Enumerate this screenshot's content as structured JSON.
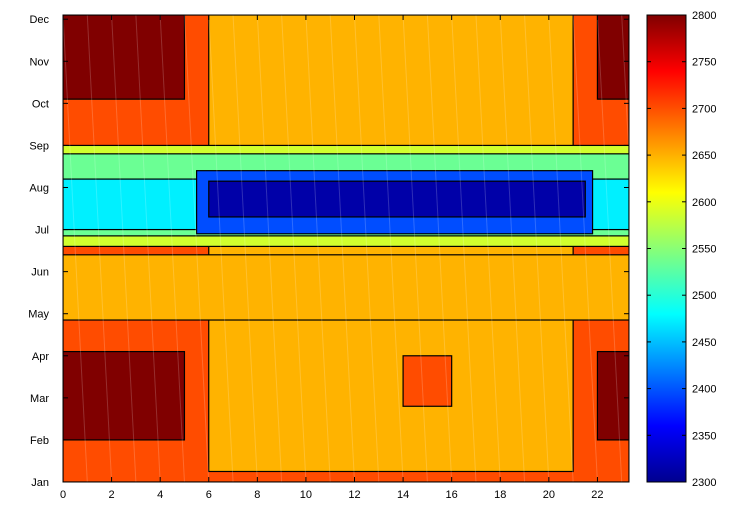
{
  "chart_data": {
    "type": "heatmap",
    "subtype": "filled-contour",
    "colormap": "jet",
    "title": "",
    "xlabel": "",
    "ylabel": "",
    "xlim": [
      0,
      23.3
    ],
    "ylim": [
      0,
      11.1
    ],
    "x_ticks": [
      0,
      2,
      4,
      6,
      8,
      10,
      12,
      14,
      16,
      18,
      20,
      22
    ],
    "y_ticks": [
      "Jan",
      "Feb",
      "Mar",
      "Apr",
      "May",
      "Jun",
      "Jul",
      "Aug",
      "Sep",
      "Oct",
      "Nov",
      "Dec"
    ],
    "colorbar": {
      "min": 2300,
      "max": 2800,
      "ticks": [
        2300,
        2350,
        2400,
        2450,
        2500,
        2550,
        2600,
        2650,
        2700,
        2750,
        2800
      ]
    },
    "contour_levels": [
      2575,
      2625,
      2675,
      2725,
      2775,
      2525,
      2475,
      2425,
      2375,
      2325
    ],
    "filled_regions": [
      {
        "value": 2700,
        "bounds": {
          "x": [
            0,
            23.3
          ],
          "y": [
            0,
            11.1
          ]
        }
      },
      {
        "value": 2650,
        "bounds": {
          "x": [
            6,
            21
          ],
          "y": [
            0.25,
            11.1
          ]
        }
      },
      {
        "value": 2650,
        "bounds": {
          "x": [
            0,
            23.3
          ],
          "y": [
            3.85,
            5.4
          ]
        }
      },
      {
        "value": 2800,
        "bounds": {
          "x": [
            0,
            5
          ],
          "y": [
            1,
            3.1
          ]
        }
      },
      {
        "value": 2800,
        "bounds": {
          "x": [
            0,
            5
          ],
          "y": [
            9.1,
            11.1
          ]
        }
      },
      {
        "value": 2800,
        "bounds": {
          "x": [
            22,
            23.3
          ],
          "y": [
            1,
            3.1
          ]
        }
      },
      {
        "value": 2800,
        "bounds": {
          "x": [
            22,
            23.3
          ],
          "y": [
            9.1,
            11.1
          ]
        }
      },
      {
        "value": 2700,
        "bounds": {
          "x": [
            14,
            16
          ],
          "y": [
            1.8,
            3
          ]
        }
      },
      {
        "value": 2590,
        "bounds": {
          "x": [
            0,
            23.3
          ],
          "y": [
            5.6,
            8
          ]
        }
      },
      {
        "value": 2540,
        "bounds": {
          "x": [
            0,
            23.3
          ],
          "y": [
            5.85,
            7.8
          ]
        }
      },
      {
        "value": 2480,
        "bounds": {
          "x": [
            0,
            23.3
          ],
          "y": [
            6,
            7.2
          ]
        }
      },
      {
        "value": 2400,
        "bounds": {
          "x": [
            5.5,
            21.8
          ],
          "y": [
            5.9,
            7.4
          ]
        }
      },
      {
        "value": 2320,
        "bounds": {
          "x": [
            6,
            21.5
          ],
          "y": [
            6.3,
            7.15
          ]
        }
      }
    ]
  }
}
